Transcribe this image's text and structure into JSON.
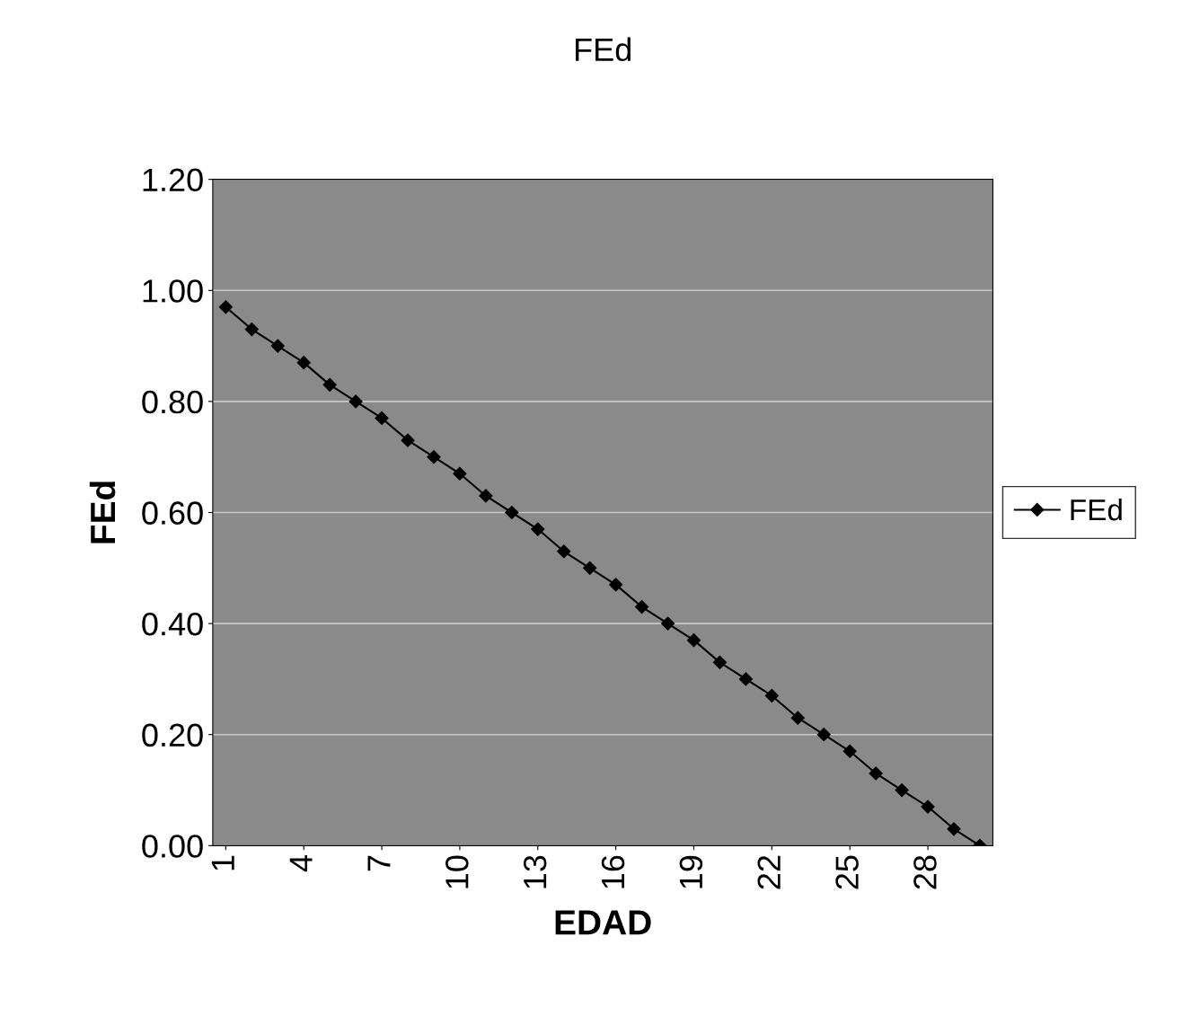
{
  "chart_data": {
    "type": "line",
    "title": "FEd",
    "xlabel": "EDAD",
    "ylabel": "FEd",
    "categories": [
      "1",
      null,
      null,
      "4",
      null,
      null,
      "7",
      null,
      null,
      "10",
      null,
      null,
      "13",
      null,
      null,
      "16",
      null,
      null,
      "19",
      null,
      null,
      "22",
      null,
      null,
      "25",
      null,
      null,
      "28",
      null,
      null
    ],
    "series": [
      {
        "name": "FEd",
        "color": "#000000",
        "values": [
          0.97,
          0.93,
          0.9,
          0.87,
          0.83,
          0.8,
          0.77,
          0.73,
          0.7,
          0.67,
          0.63,
          0.6,
          0.57,
          0.53,
          0.5,
          0.47,
          0.43,
          0.4,
          0.37,
          0.33,
          0.3,
          0.27,
          0.23,
          0.2,
          0.17,
          0.13,
          0.1,
          0.07,
          0.03,
          0.0
        ]
      }
    ],
    "ylim": [
      0,
      1.2
    ],
    "yticks": [
      {
        "value": 0,
        "label": "0.00"
      },
      {
        "value": 0.2,
        "label": "0.20"
      },
      {
        "value": 0.4,
        "label": "0.40"
      },
      {
        "value": 0.6,
        "label": "0.60"
      },
      {
        "value": 0.8,
        "label": "0.80"
      },
      {
        "value": 1.0,
        "label": "1.00"
      },
      {
        "value": 1.2,
        "label": "1.20"
      }
    ],
    "grid": "y",
    "legend": "right",
    "marker": "diamond",
    "line_style": "solid"
  }
}
